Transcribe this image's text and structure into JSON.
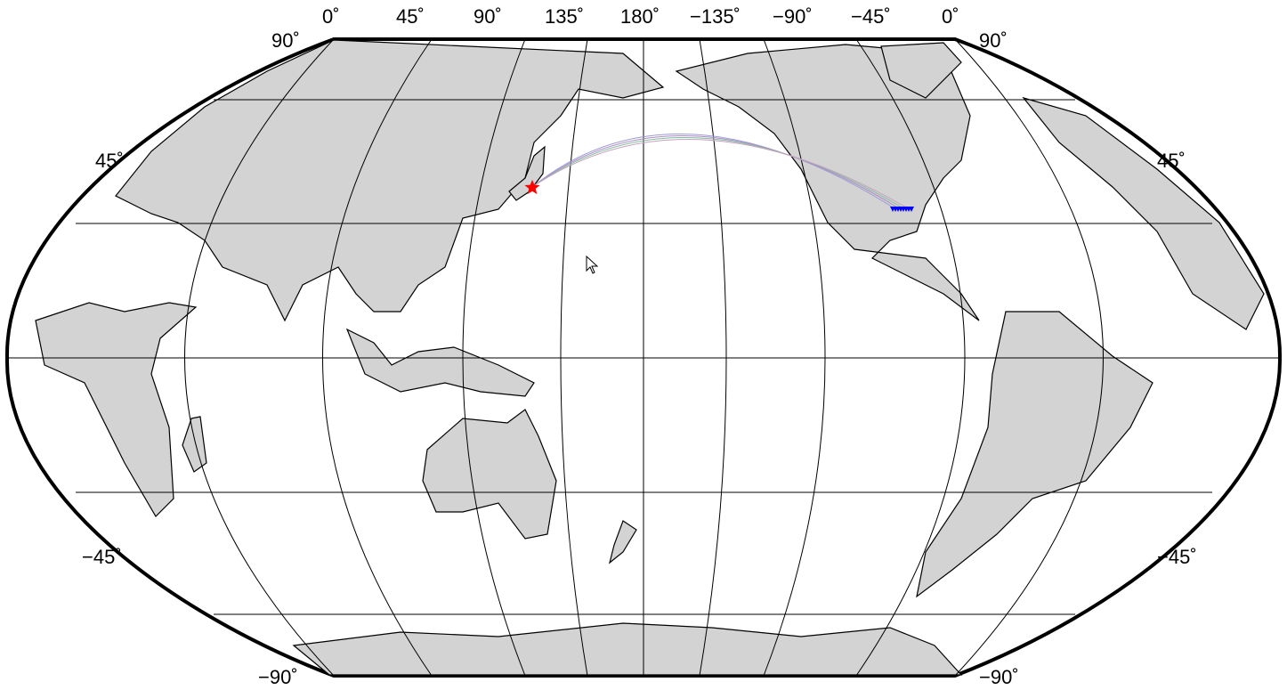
{
  "map": {
    "projection": "Winkel-Tripel-like world map, centered on 180°",
    "top_lon_labels": [
      "0˚",
      "45˚",
      "90˚",
      "135˚",
      "180˚",
      "−135˚",
      "−90˚",
      "−45˚",
      "0˚"
    ],
    "lat_labels": {
      "n90_left": "90˚",
      "n90_right": "90˚",
      "n45_left": "45˚",
      "n45_right": "45˚",
      "s45_left": "−45˚",
      "s45_right": "−45˚",
      "s90_left": "−90˚",
      "s90_right": "−90˚"
    },
    "colors": {
      "land": "#d3d3d3",
      "coast": "#000000",
      "grid": "#000000",
      "event": "#ff0000",
      "stations": "#0000ff",
      "paths": [
        "#9b9bd6",
        "#b08bc9",
        "#7fbf9a",
        "#c9a0c0"
      ]
    },
    "event": {
      "name": "earthquake-epicenter",
      "marker": "star",
      "region": "Japan"
    },
    "stations": {
      "name": "seismic-stations",
      "marker": "inverted-triangle",
      "count": 10,
      "region": "Central USA"
    }
  }
}
